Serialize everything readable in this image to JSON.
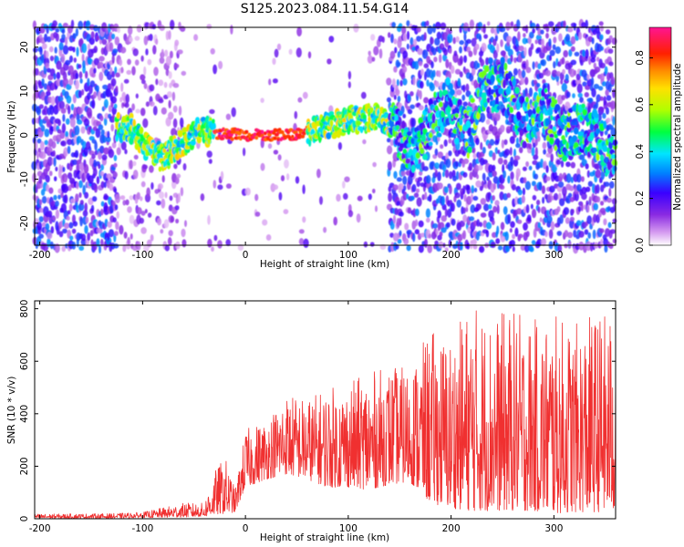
{
  "figure_title": "S125.2023.084.11.54.G14",
  "chart_data": [
    {
      "type": "heatmap",
      "xlabel": "Height of straight line (km)",
      "ylabel": "Frequency (Hz)",
      "xlim": [
        -205,
        360
      ],
      "ylim": [
        -25,
        24.5
      ],
      "x_ticks": [
        -200,
        -100,
        0,
        100,
        200,
        300
      ],
      "y_ticks": [
        -20,
        -10,
        0,
        10,
        20
      ],
      "colorbar": {
        "label": "Normalized spectral amplitude",
        "range": [
          0,
          0.93
        ],
        "ticks": [
          "0.0",
          "0.2",
          "0.4",
          "0.6",
          "0.8"
        ],
        "tick_values": [
          0.0,
          0.2,
          0.4,
          0.6,
          0.8
        ],
        "colormap": [
          "#ffffff",
          "#d59af0",
          "#8a2be2",
          "#3a00ff",
          "#0080ff",
          "#00e5ff",
          "#00ff40",
          "#b0ff00",
          "#ffe000",
          "#ff8c00",
          "#ff2000",
          "#ff1493"
        ]
      },
      "center_frequency_track": [
        {
          "x": -125,
          "y": 2.0
        },
        {
          "x": -110,
          "y": 1.5
        },
        {
          "x": -95,
          "y": -3.0
        },
        {
          "x": -80,
          "y": -5.5
        },
        {
          "x": -65,
          "y": -2.0
        },
        {
          "x": -45,
          "y": 1.0
        },
        {
          "x": -30,
          "y": 0.5
        },
        {
          "x": 0,
          "y": 0.0
        },
        {
          "x": 25,
          "y": 0.0
        },
        {
          "x": 50,
          "y": 0.3
        },
        {
          "x": 75,
          "y": 1.5
        },
        {
          "x": 100,
          "y": 3.5
        },
        {
          "x": 125,
          "y": 4.0
        },
        {
          "x": 145,
          "y": 3.0
        },
        {
          "x": 160,
          "y": -5.0
        },
        {
          "x": 180,
          "y": 2.0
        },
        {
          "x": 195,
          "y": 8.0
        },
        {
          "x": 215,
          "y": 0.0
        },
        {
          "x": 230,
          "y": 10.0
        },
        {
          "x": 250,
          "y": 12.0
        },
        {
          "x": 270,
          "y": 3.0
        },
        {
          "x": 290,
          "y": 6.0
        },
        {
          "x": 310,
          "y": 0.0
        },
        {
          "x": 330,
          "y": 2.0
        },
        {
          "x": 350,
          "y": -3.0
        },
        {
          "x": 360,
          "y": -4.0
        }
      ],
      "peak_amplitude_band": {
        "x_range": [
          -30,
          60
        ],
        "frequency": 0.0,
        "amplitude": 0.93
      }
    },
    {
      "type": "line",
      "xlabel": "Height of straight line (km)",
      "ylabel": "SNR (10 * v/v)",
      "xlim": [
        -205,
        360
      ],
      "ylim": [
        0,
        830
      ],
      "x_ticks": [
        -200,
        -100,
        0,
        100,
        200,
        300
      ],
      "y_ticks": [
        0,
        200,
        400,
        600,
        800
      ],
      "color": "#f03030",
      "envelope": {
        "x": [
          -205,
          -130,
          -100,
          -60,
          -40,
          -30,
          -20,
          -10,
          0,
          20,
          40,
          60,
          80,
          100,
          120,
          140,
          160,
          180,
          200,
          220,
          240,
          260,
          280,
          300,
          320,
          340,
          360
        ],
        "min": [
          2,
          2,
          4,
          6,
          8,
          15,
          20,
          25,
          120,
          150,
          170,
          150,
          120,
          120,
          110,
          130,
          140,
          60,
          40,
          30,
          30,
          30,
          30,
          20,
          25,
          25,
          30
        ],
        "max": [
          18,
          20,
          25,
          60,
          60,
          180,
          240,
          110,
          340,
          380,
          480,
          460,
          500,
          520,
          560,
          580,
          580,
          720,
          700,
          830,
          780,
          800,
          760,
          780,
          740,
          790,
          780
        ]
      }
    }
  ]
}
